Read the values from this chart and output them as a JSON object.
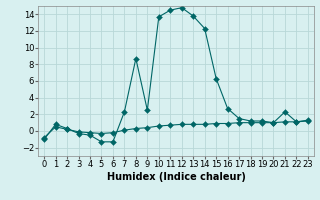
{
  "xlabel": "Humidex (Indice chaleur)",
  "ylabel": "",
  "background_color": "#d8f0f0",
  "grid_color": "#b8d8d8",
  "line_color": "#006666",
  "xlim": [
    -0.5,
    23.5
  ],
  "ylim": [
    -3,
    15
  ],
  "xticks": [
    0,
    1,
    2,
    3,
    4,
    5,
    6,
    7,
    8,
    9,
    10,
    11,
    12,
    13,
    14,
    15,
    16,
    17,
    18,
    19,
    20,
    21,
    22,
    23
  ],
  "yticks": [
    -2,
    0,
    2,
    4,
    6,
    8,
    10,
    12,
    14
  ],
  "curve1_x": [
    0,
    1,
    2,
    3,
    4,
    5,
    6,
    7,
    8,
    9,
    10,
    11,
    12,
    13,
    14,
    15,
    16,
    17,
    18,
    19,
    20,
    21,
    22,
    23
  ],
  "curve1_y": [
    -1.0,
    0.8,
    0.3,
    -0.3,
    -0.5,
    -1.3,
    -1.3,
    2.3,
    8.7,
    2.5,
    13.7,
    14.5,
    14.8,
    13.8,
    12.3,
    6.3,
    2.7,
    1.5,
    1.2,
    1.2,
    1.0,
    2.3,
    1.1,
    1.3
  ],
  "curve2_x": [
    0,
    1,
    2,
    3,
    4,
    5,
    6,
    7,
    8,
    9,
    10,
    11,
    12,
    13,
    14,
    15,
    16,
    17,
    18,
    19,
    20,
    21,
    22,
    23
  ],
  "curve2_y": [
    -0.8,
    0.5,
    0.2,
    -0.1,
    -0.2,
    -0.3,
    -0.2,
    0.1,
    0.3,
    0.4,
    0.6,
    0.7,
    0.8,
    0.8,
    0.8,
    0.9,
    0.9,
    1.0,
    1.0,
    1.0,
    1.0,
    1.1,
    1.1,
    1.2
  ],
  "marker_size": 3,
  "line_width": 0.8,
  "xlabel_fontsize": 7,
  "tick_fontsize": 6
}
